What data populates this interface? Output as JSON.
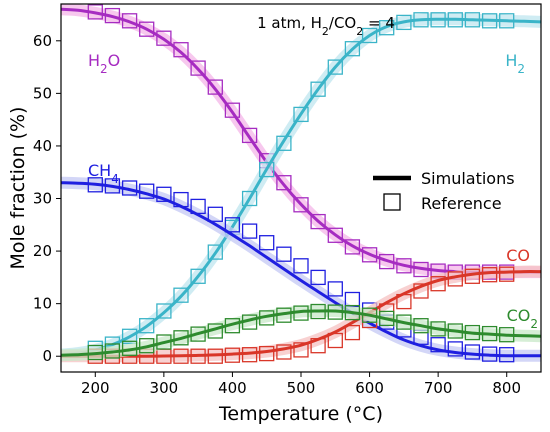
{
  "chart_data": {
    "type": "line",
    "xlabel": "Temperature (°C)",
    "ylabel": "Mole fraction (%)",
    "xlim": [
      150,
      850
    ],
    "ylim": [
      -3,
      67
    ],
    "xticks": [
      200,
      300,
      400,
      500,
      600,
      700,
      800
    ],
    "yticks": [
      0,
      10,
      20,
      30,
      40,
      50,
      60
    ],
    "annotation": {
      "prefix": "1 atm, H",
      "sub1": "2",
      "mid": "/CO",
      "sub2": "2",
      "suffix": " = 4"
    },
    "legend": {
      "position": "center-right",
      "line_label": "Simulations",
      "marker_label": "Reference"
    },
    "series": [
      {
        "name": "H2O",
        "label_main": "H",
        "label_sub": "2",
        "label_tail": "O",
        "color": "#a62cc1",
        "halo": "#f4b6e8",
        "x": [
          150,
          175,
          200,
          225,
          250,
          275,
          300,
          325,
          350,
          375,
          400,
          425,
          450,
          475,
          500,
          525,
          550,
          575,
          600,
          625,
          650,
          675,
          700,
          725,
          750,
          775,
          800,
          825,
          850
        ],
        "y": [
          66,
          65.8,
          65.3,
          64.6,
          63.6,
          62.2,
          60.3,
          57.8,
          54.6,
          50.8,
          46.4,
          41.6,
          36.9,
          32.6,
          28.9,
          25.7,
          23.1,
          21.0,
          19.4,
          18.2,
          17.3,
          16.7,
          16.3,
          16.1,
          16.0,
          16.0,
          16.0,
          16.0,
          16.0
        ],
        "ref_x": [
          200,
          225,
          250,
          275,
          300,
          325,
          350,
          375,
          400,
          425,
          450,
          475,
          500,
          525,
          550,
          575,
          600,
          625,
          650,
          675,
          700,
          725,
          750,
          775,
          800
        ],
        "ref_y": [
          65.5,
          64.8,
          63.8,
          62.2,
          60.5,
          58.3,
          54.8,
          51.2,
          46.8,
          42.0,
          37.2,
          33.0,
          28.8,
          25.6,
          23.0,
          20.8,
          19.3,
          18.0,
          17.2,
          16.5,
          16.2,
          16.0,
          16.0,
          16.0,
          16.0
        ]
      },
      {
        "name": "H2",
        "label_main": "H",
        "label_sub": "2",
        "label_tail": "",
        "color": "#3ab4c8",
        "halo": "#bfe6ef",
        "x": [
          150,
          175,
          200,
          225,
          250,
          275,
          300,
          325,
          350,
          375,
          400,
          425,
          450,
          475,
          500,
          525,
          550,
          575,
          600,
          625,
          650,
          675,
          700,
          725,
          750,
          775,
          800,
          825,
          850
        ],
        "y": [
          0.3,
          0.6,
          1.2,
          2.2,
          3.7,
          5.7,
          8.3,
          11.4,
          15.2,
          19.6,
          24.6,
          30.0,
          35.6,
          41.0,
          46.1,
          50.8,
          55.0,
          58.4,
          61.0,
          62.7,
          63.6,
          64.0,
          64.1,
          64.1,
          64.0,
          63.9,
          63.8,
          63.7,
          63.6
        ],
        "ref_x": [
          200,
          225,
          250,
          275,
          300,
          325,
          350,
          375,
          400,
          425,
          450,
          475,
          500,
          525,
          550,
          575,
          600,
          625,
          650,
          675,
          700,
          725,
          750,
          775,
          800
        ],
        "ref_y": [
          1.5,
          2.3,
          3.8,
          5.8,
          8.6,
          11.6,
          15.2,
          19.8,
          24.5,
          30.0,
          35.5,
          40.5,
          46.0,
          50.8,
          55.0,
          58.5,
          61.0,
          62.5,
          63.5,
          64.0,
          64.0,
          64.0,
          64.0,
          63.8,
          63.8
        ]
      },
      {
        "name": "CH4",
        "label_main": "CH",
        "label_sub": "4",
        "label_tail": "",
        "color": "#1f1fe0",
        "halo": "#c4c8f4",
        "x": [
          150,
          175,
          200,
          225,
          250,
          275,
          300,
          325,
          350,
          375,
          400,
          425,
          450,
          475,
          500,
          525,
          550,
          575,
          600,
          625,
          650,
          675,
          700,
          725,
          750,
          775,
          800,
          825,
          850
        ],
        "y": [
          33.0,
          32.9,
          32.7,
          32.3,
          31.7,
          30.9,
          29.9,
          28.5,
          26.9,
          25.1,
          23.1,
          21.0,
          18.8,
          16.6,
          14.4,
          12.3,
          10.2,
          8.2,
          6.3,
          4.6,
          3.1,
          2.0,
          1.2,
          0.7,
          0.4,
          0.2,
          0.1,
          0.1,
          0.1
        ],
        "ref_x": [
          200,
          225,
          250,
          275,
          300,
          325,
          350,
          375,
          400,
          425,
          450,
          475,
          500,
          525,
          550,
          575,
          600,
          625,
          650,
          675,
          700,
          725,
          750,
          775,
          800
        ],
        "ref_y": [
          32.6,
          32.4,
          32.0,
          31.4,
          30.8,
          29.8,
          28.5,
          27.0,
          25.0,
          23.8,
          21.6,
          19.4,
          17.2,
          15.0,
          12.8,
          10.8,
          8.8,
          6.5,
          5.0,
          3.6,
          2.2,
          1.4,
          0.8,
          0.4,
          0.3
        ]
      },
      {
        "name": "CO",
        "label_main": "CO",
        "label_sub": "",
        "label_tail": "",
        "color": "#d93628",
        "halo": "#f6c2c2",
        "x": [
          150,
          175,
          200,
          225,
          250,
          275,
          300,
          325,
          350,
          375,
          400,
          425,
          450,
          475,
          500,
          525,
          550,
          575,
          600,
          625,
          650,
          675,
          700,
          725,
          750,
          775,
          800,
          825,
          850
        ],
        "y": [
          0,
          0,
          0,
          0,
          0,
          0,
          0.05,
          0.1,
          0.15,
          0.25,
          0.4,
          0.6,
          0.9,
          1.4,
          2.1,
          3.2,
          4.6,
          6.4,
          8.3,
          10.2,
          11.9,
          13.3,
          14.4,
          15.1,
          15.6,
          15.9,
          16.0,
          16.1,
          16.1
        ],
        "ref_x": [
          200,
          225,
          250,
          275,
          300,
          325,
          350,
          375,
          400,
          425,
          450,
          475,
          500,
          525,
          550,
          575,
          600,
          625,
          650,
          675,
          700,
          725,
          750,
          775,
          800
        ],
        "ref_y": [
          0,
          0,
          0,
          0,
          0,
          0,
          0,
          0,
          0.2,
          0.3,
          0.5,
          0.8,
          1.2,
          2.0,
          3.0,
          4.5,
          6.8,
          8.6,
          10.4,
          12.4,
          13.8,
          14.7,
          15.2,
          15.5,
          15.6
        ]
      },
      {
        "name": "CO2",
        "label_main": "CO",
        "label_sub": "2",
        "label_tail": "",
        "color": "#2e8b2e",
        "halo": "#c8e8c8",
        "x": [
          150,
          175,
          200,
          225,
          250,
          275,
          300,
          325,
          350,
          375,
          400,
          425,
          450,
          475,
          500,
          525,
          550,
          575,
          600,
          625,
          650,
          675,
          700,
          725,
          750,
          775,
          800,
          825,
          850
        ],
        "y": [
          0.2,
          0.3,
          0.5,
          0.8,
          1.2,
          1.8,
          2.6,
          3.4,
          4.3,
          5.2,
          6.1,
          6.9,
          7.6,
          8.1,
          8.5,
          8.6,
          8.6,
          8.3,
          7.8,
          7.1,
          6.4,
          5.8,
          5.2,
          4.8,
          4.4,
          4.2,
          4.0,
          3.9,
          3.8
        ],
        "ref_x": [
          200,
          225,
          250,
          275,
          300,
          325,
          350,
          375,
          400,
          425,
          450,
          475,
          500,
          525,
          550,
          575,
          600,
          625,
          650,
          675,
          700,
          725,
          750,
          775,
          800
        ],
        "ref_y": [
          0.7,
          1.0,
          1.5,
          2.0,
          2.7,
          3.5,
          4.2,
          4.8,
          5.8,
          6.5,
          7.3,
          7.8,
          8.2,
          8.5,
          8.4,
          8.3,
          7.8,
          7.2,
          6.5,
          5.8,
          5.2,
          4.8,
          4.5,
          4.3,
          4.1
        ]
      }
    ]
  }
}
